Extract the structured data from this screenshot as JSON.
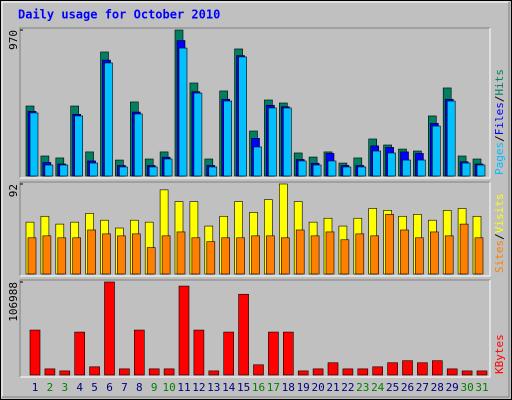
{
  "chart_data": [
    {
      "type": "bar",
      "title": "Daily usage for October 2010",
      "ylim": [
        0,
        970
      ],
      "yticks": [
        970
      ],
      "legend_separator": "/",
      "series": [
        {
          "name": "Hits",
          "color": "#008060",
          "values": [
            465,
            133,
            120,
            465,
            160,
            824,
            106,
            492,
            113,
            160,
            970,
            618,
            113,
            565,
            844,
            299,
            505,
            485,
            153,
            126,
            160,
            86,
            120,
            246,
            206,
            179,
            166,
            399,
            585,
            133,
            113
          ]
        },
        {
          "name": "Files",
          "color": "#0000ff",
          "values": [
            430,
            90,
            80,
            410,
            100,
            770,
            70,
            425,
            70,
            125,
            900,
            560,
            70,
            510,
            800,
            250,
            470,
            460,
            110,
            85,
            150,
            70,
            70,
            200,
            190,
            160,
            150,
            350,
            510,
            95,
            80
          ]
        },
        {
          "name": "Pages",
          "color": "#00c0ff",
          "values": [
            419,
            73,
            73,
            399,
            86,
            751,
            60,
            412,
            60,
            113,
            850,
            551,
            60,
            498,
            791,
            193,
            452,
            452,
            100,
            73,
            100,
            60,
            60,
            166,
            153,
            106,
            106,
            332,
            498,
            86,
            73
          ]
        }
      ]
    },
    {
      "type": "bar",
      "ylim": [
        0,
        92
      ],
      "yticks": [
        92
      ],
      "legend_separator": "/",
      "series": [
        {
          "name": "Visits",
          "color": "#ffff00",
          "values": [
            53,
            59,
            51,
            53,
            62,
            55,
            47,
            55,
            53,
            86,
            74,
            74,
            49,
            59,
            74,
            63,
            76,
            92,
            74,
            53,
            57,
            49,
            57,
            67,
            65,
            59,
            61,
            55,
            65,
            67,
            59
          ]
        },
        {
          "name": "Sites",
          "color": "#ff8000",
          "values": [
            37,
            39,
            37,
            37,
            45,
            41,
            39,
            41,
            27,
            39,
            43,
            37,
            33,
            37,
            37,
            39,
            39,
            37,
            45,
            39,
            43,
            35,
            41,
            39,
            61,
            45,
            37,
            43,
            39,
            51,
            37
          ]
        }
      ]
    },
    {
      "type": "bar",
      "ylim": [
        0,
        106988
      ],
      "yticks": [
        106988
      ],
      "categories": [
        "1",
        "2",
        "3",
        "4",
        "5",
        "6",
        "7",
        "8",
        "9",
        "10",
        "11",
        "12",
        "13",
        "14",
        "15",
        "16",
        "17",
        "18",
        "19",
        "20",
        "21",
        "22",
        "23",
        "24",
        "25",
        "26",
        "27",
        "28",
        "29",
        "30",
        "31"
      ],
      "category_colors": [
        "#000080",
        "#008000",
        "#008000",
        "#000080",
        "#000080",
        "#000080",
        "#000080",
        "#000080",
        "#008000",
        "#008000",
        "#000080",
        "#000080",
        "#000080",
        "#000080",
        "#000080",
        "#008000",
        "#008000",
        "#000080",
        "#000080",
        "#000080",
        "#000080",
        "#000080",
        "#008000",
        "#008000",
        "#000080",
        "#000080",
        "#000080",
        "#000080",
        "#000080",
        "#008000",
        "#008000"
      ],
      "series": [
        {
          "name": "KBytes",
          "color": "#ff0000",
          "values": [
            51700,
            7050,
            4700,
            49400,
            9400,
            106988,
            7050,
            51700,
            7050,
            7050,
            102300,
            51700,
            4700,
            49400,
            92900,
            11760,
            49400,
            49400,
            4700,
            7050,
            14100,
            7050,
            7050,
            9400,
            14100,
            16460,
            14100,
            16460,
            7050,
            4700,
            4700
          ]
        }
      ]
    }
  ]
}
